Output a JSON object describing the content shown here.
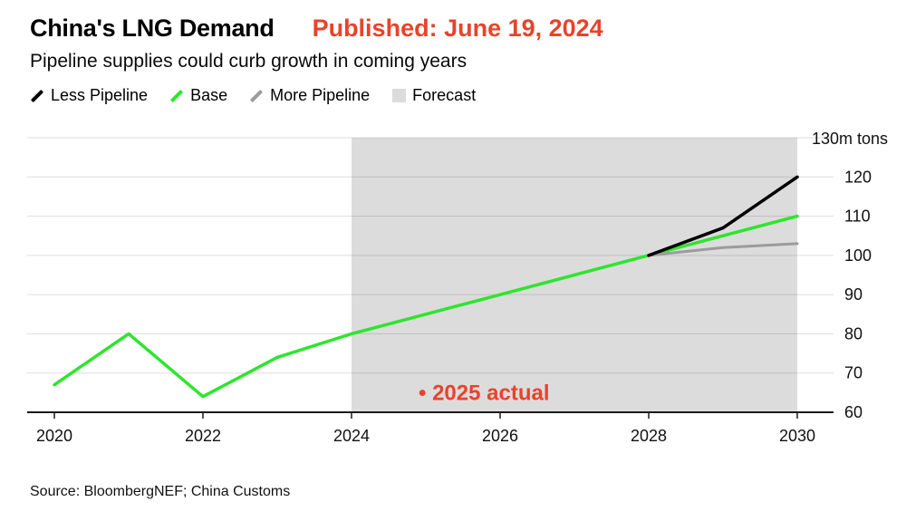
{
  "colors": {
    "accent_red": "#e8432b",
    "base_green": "#2ee52e",
    "less_pipeline_black": "#000000",
    "more_pipeline_gray": "#9b9b9b",
    "forecast_gray": "#dcdcdc"
  },
  "header": {
    "title": "China's LNG Demand",
    "published": "Published: June 19, 2024",
    "subtitle": "Pipeline supplies could curb growth in coming years"
  },
  "legend": [
    {
      "label": "Less Pipeline",
      "color": "#000000",
      "swatch": "line"
    },
    {
      "label": "Base",
      "color": "#2ee52e",
      "swatch": "line"
    },
    {
      "label": "More Pipeline",
      "color": "#9b9b9b",
      "swatch": "line"
    },
    {
      "label": "Forecast",
      "color": "#dcdcdc",
      "swatch": "box"
    }
  ],
  "chart_data": {
    "type": "line",
    "title": "China's LNG Demand",
    "xlabel": "",
    "ylabel": "m tons",
    "xlim": [
      2019.6,
      2030.5
    ],
    "ylim": [
      60,
      130
    ],
    "x_ticks": [
      2020,
      2022,
      2024,
      2026,
      2028,
      2030
    ],
    "y_ticks": [
      60,
      70,
      80,
      90,
      100,
      110,
      120,
      130
    ],
    "y_top_label": "130m tons",
    "grid": true,
    "legend_position": "top",
    "forecast_region": {
      "x0": 2024,
      "x1": 2030,
      "color": "#dcdcdc",
      "label": "Forecast"
    },
    "series": [
      {
        "name": "Base",
        "color": "#2ee52e",
        "width": 3.5,
        "x": [
          2020,
          2021,
          2022,
          2023,
          2024,
          2025,
          2026,
          2027,
          2028,
          2029,
          2030
        ],
        "values": [
          67,
          80,
          64,
          74,
          80,
          85,
          90,
          95,
          100,
          105,
          110
        ]
      },
      {
        "name": "More Pipeline",
        "color": "#9b9b9b",
        "width": 3,
        "x": [
          2028,
          2029,
          2030
        ],
        "values": [
          100,
          102,
          103
        ]
      },
      {
        "name": "Less Pipeline",
        "color": "#000000",
        "width": 3.5,
        "x": [
          2028,
          2029,
          2030
        ],
        "values": [
          100,
          107,
          120
        ]
      }
    ],
    "annotation": {
      "marker": "•",
      "label": "2025 actual",
      "x": 2025,
      "y": 65,
      "color": "#e8432b"
    }
  },
  "source": "Source: BloombergNEF; China Customs"
}
